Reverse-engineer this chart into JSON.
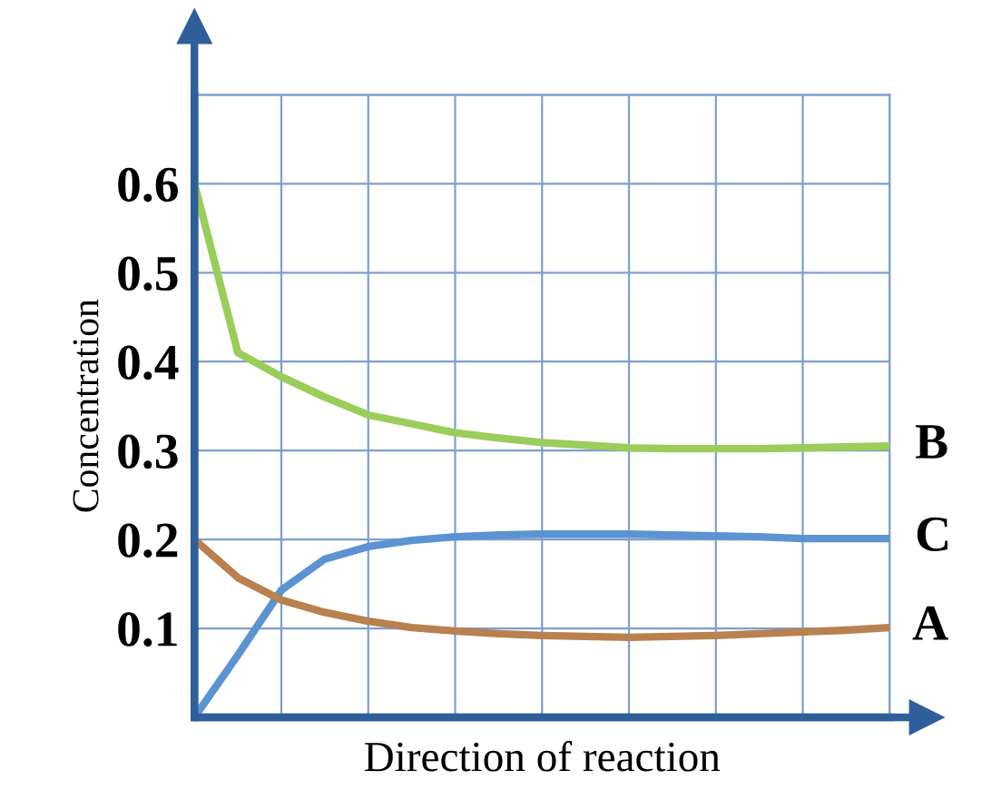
{
  "chart_data": {
    "type": "line",
    "xlabel": "Direction of reaction",
    "ylabel": "Concentration",
    "categories": [
      null,
      null,
      null,
      null,
      null,
      null,
      null,
      null,
      null,
      null,
      null,
      null,
      null,
      null,
      null,
      null,
      null
    ],
    "ylim": [
      0,
      0.7
    ],
    "yticks": [
      {
        "value": 0,
        "label": null
      },
      0.1,
      0.2,
      0.3,
      0.4,
      0.5,
      0.6,
      {
        "value": 0.7,
        "label": null
      }
    ],
    "grid": true,
    "marker": "none",
    "line_style": "solid",
    "series": [
      {
        "name": "B",
        "color": "#9acd5a",
        "values": [
          0.6,
          0.41,
          0.383,
          0.36,
          0.34,
          0.33,
          0.32,
          0.314,
          0.309,
          0.306,
          0.303,
          0.302,
          0.302,
          0.302,
          0.303,
          0.304,
          0.305
        ]
      },
      {
        "name": "C",
        "color": "#5b93d3",
        "values": [
          0,
          0.07,
          0.143,
          0.178,
          0.192,
          0.199,
          0.203,
          0.205,
          0.206,
          0.206,
          0.206,
          0.205,
          0.204,
          0.203,
          0.201,
          0.201,
          0.201
        ]
      },
      {
        "name": "A",
        "color": "#b8814f",
        "values": [
          0.2,
          0.157,
          0.132,
          0.118,
          0.108,
          0.101,
          0.097,
          0.094,
          0.092,
          0.091,
          0.09,
          0.091,
          0.092,
          0.094,
          0.096,
          0.098,
          0.101
        ]
      }
    ]
  }
}
